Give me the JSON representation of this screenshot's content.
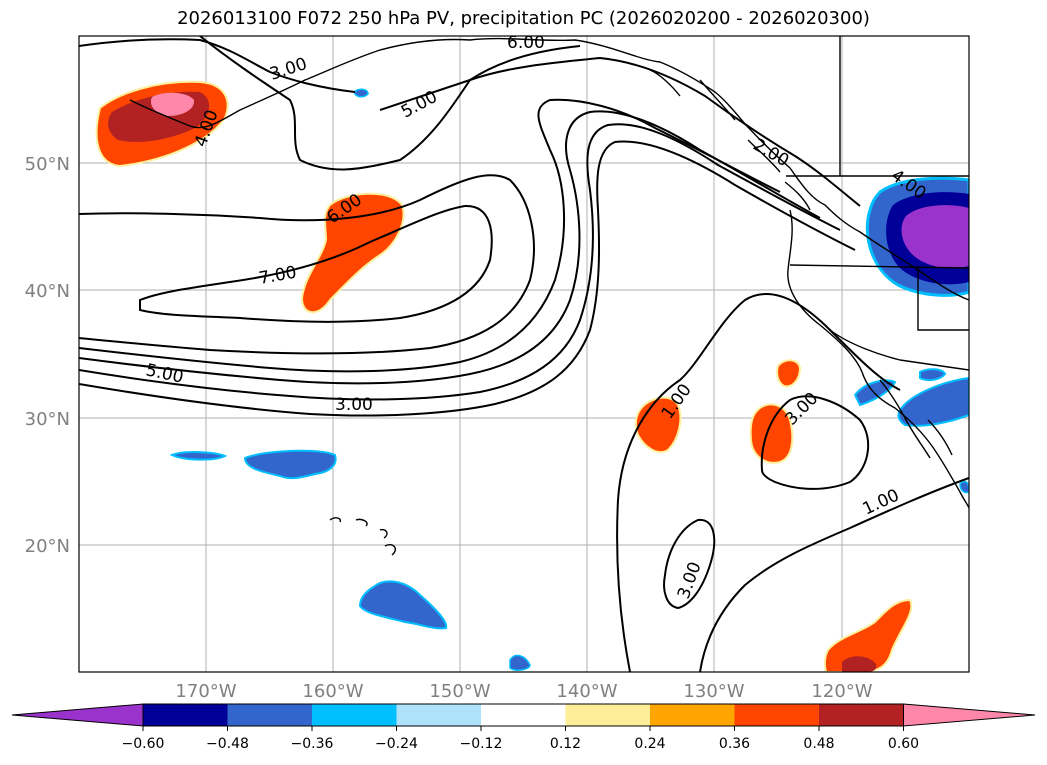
{
  "title": "2026013100 F072 250 hPa PV, precipitation PC (2026020200 - 2026020300)",
  "map": {
    "lon_range": [
      -180,
      -110
    ],
    "lat_range": [
      10,
      60
    ],
    "lat_labels": [
      "20°N",
      "30°N",
      "40°N",
      "50°N"
    ],
    "lon_labels": [
      "170°W",
      "160°W",
      "150°W",
      "140°W",
      "130°W",
      "120°W"
    ],
    "contour_labels": [
      "6.00",
      "3.00",
      "5.00",
      "4.00",
      "2.00",
      "4.00",
      "6.00",
      "7.00",
      "5.00",
      "3.00",
      "1.00",
      "3.00",
      "1.00",
      "3.00"
    ]
  },
  "colorbar": {
    "colors": [
      "#9933cc",
      "#000099",
      "#3366cc",
      "#00bfff",
      "#aee2fa",
      "#ffffff",
      "#ffee99",
      "#ffa500",
      "#ff4500",
      "#b22222",
      "#ff88aa"
    ],
    "tick_labels": [
      "−0.60",
      "−0.48",
      "−0.36",
      "−0.24",
      "−0.12",
      "0.12",
      "0.24",
      "0.36",
      "0.48",
      "0.60"
    ]
  }
}
